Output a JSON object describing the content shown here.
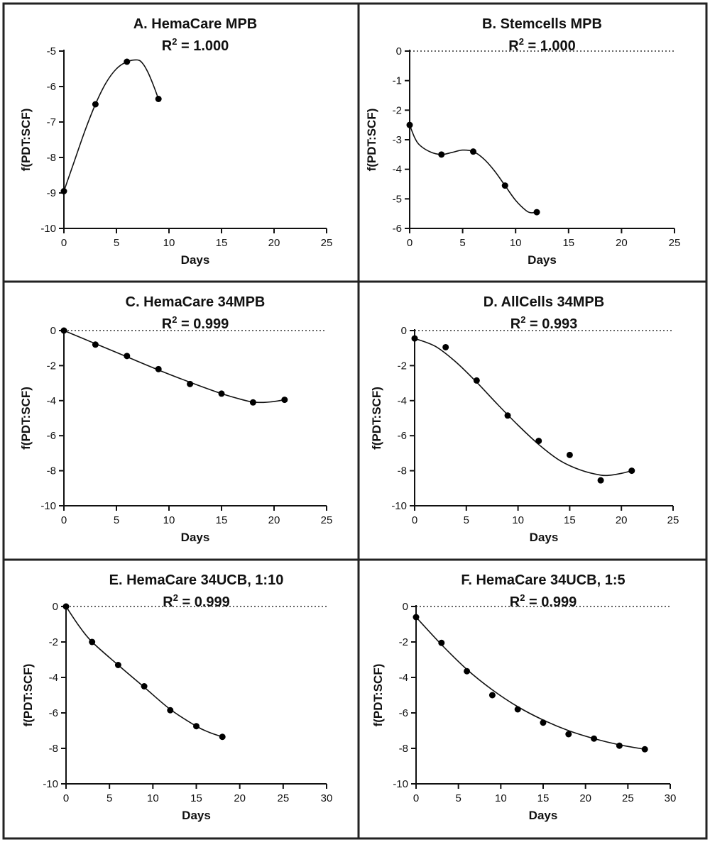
{
  "chart_data": [
    {
      "id": "A",
      "type": "scatter",
      "title": "A. HemaCare MPB",
      "r2_value": "1.000",
      "xlabel": "Days",
      "ylabel": "f(PDT:SCF)",
      "xlim": [
        0,
        25
      ],
      "ylim": [
        -10,
        -5
      ],
      "xticks": [
        0,
        5,
        10,
        15,
        20,
        25
      ],
      "yticks": [
        -10,
        -9,
        -8,
        -7,
        -6,
        -5
      ],
      "zero_line": false,
      "points": [
        [
          0,
          -8.95
        ],
        [
          3,
          -6.5
        ],
        [
          6,
          -5.3
        ],
        [
          9,
          -6.35
        ]
      ],
      "fit": [
        [
          0,
          -8.95
        ],
        [
          1,
          -8.1
        ],
        [
          2,
          -7.25
        ],
        [
          3,
          -6.5
        ],
        [
          4,
          -5.9
        ],
        [
          5,
          -5.5
        ],
        [
          6,
          -5.3
        ],
        [
          7,
          -5.25
        ],
        [
          7.5,
          -5.35
        ],
        [
          8,
          -5.6
        ],
        [
          8.5,
          -5.95
        ],
        [
          9,
          -6.35
        ]
      ]
    },
    {
      "id": "B",
      "type": "scatter",
      "title": "B. Stemcells MPB",
      "r2_value": "1.000",
      "xlabel": "Days",
      "ylabel": "f(PDT:SCF)",
      "xlim": [
        0,
        25
      ],
      "ylim": [
        -6,
        0
      ],
      "xticks": [
        0,
        5,
        10,
        15,
        20,
        25
      ],
      "yticks": [
        -6,
        -5,
        -4,
        -3,
        -2,
        -1,
        0
      ],
      "zero_line": true,
      "points": [
        [
          0,
          -2.5
        ],
        [
          3,
          -3.5
        ],
        [
          6,
          -3.4
        ],
        [
          9,
          -4.55
        ],
        [
          12,
          -5.45
        ]
      ],
      "fit": [
        [
          0,
          -2.5
        ],
        [
          0.5,
          -2.95
        ],
        [
          1,
          -3.2
        ],
        [
          2,
          -3.42
        ],
        [
          3,
          -3.5
        ],
        [
          4,
          -3.43
        ],
        [
          5,
          -3.35
        ],
        [
          6,
          -3.4
        ],
        [
          7,
          -3.65
        ],
        [
          8,
          -4.05
        ],
        [
          9,
          -4.55
        ],
        [
          10,
          -5.05
        ],
        [
          11,
          -5.4
        ],
        [
          11.5,
          -5.47
        ],
        [
          12,
          -5.45
        ]
      ]
    },
    {
      "id": "C",
      "type": "scatter",
      "title": "C. HemaCare 34MPB",
      "r2_value": "0.999",
      "xlabel": "Days",
      "ylabel": "f(PDT:SCF)",
      "xlim": [
        0,
        25
      ],
      "ylim": [
        -10,
        0
      ],
      "xticks": [
        0,
        5,
        10,
        15,
        20,
        25
      ],
      "yticks": [
        -10,
        -8,
        -6,
        -4,
        -2,
        0
      ],
      "zero_line": true,
      "points": [
        [
          0,
          0
        ],
        [
          3,
          -0.8
        ],
        [
          6,
          -1.45
        ],
        [
          9,
          -2.2
        ],
        [
          12,
          -3.05
        ],
        [
          15,
          -3.6
        ],
        [
          18,
          -4.1
        ],
        [
          21,
          -3.95
        ]
      ],
      "fit": [
        [
          0,
          0
        ],
        [
          3,
          -0.75
        ],
        [
          6,
          -1.5
        ],
        [
          9,
          -2.25
        ],
        [
          12,
          -2.95
        ],
        [
          15,
          -3.6
        ],
        [
          17,
          -3.95
        ],
        [
          18,
          -4.08
        ],
        [
          19,
          -4.1
        ],
        [
          20,
          -4.05
        ],
        [
          21,
          -3.95
        ]
      ]
    },
    {
      "id": "D",
      "type": "scatter",
      "title": "D. AllCells 34MPB",
      "r2_value": "0.993",
      "xlabel": "Days",
      "ylabel": "f(PDT:SCF)",
      "xlim": [
        0,
        25
      ],
      "ylim": [
        -10,
        0
      ],
      "xticks": [
        0,
        5,
        10,
        15,
        20,
        25
      ],
      "yticks": [
        -10,
        -8,
        -6,
        -4,
        -2,
        0
      ],
      "zero_line": true,
      "points": [
        [
          0,
          -0.45
        ],
        [
          3,
          -0.95
        ],
        [
          6,
          -2.85
        ],
        [
          9,
          -4.85
        ],
        [
          12,
          -6.3
        ],
        [
          15,
          -7.1
        ],
        [
          18,
          -8.55
        ],
        [
          21,
          -8.0
        ]
      ],
      "fit": [
        [
          0,
          -0.45
        ],
        [
          2,
          -0.9
        ],
        [
          4,
          -1.8
        ],
        [
          6,
          -2.95
        ],
        [
          8,
          -4.2
        ],
        [
          10,
          -5.4
        ],
        [
          12,
          -6.5
        ],
        [
          14,
          -7.4
        ],
        [
          16,
          -7.95
        ],
        [
          18,
          -8.25
        ],
        [
          19,
          -8.25
        ],
        [
          20,
          -8.15
        ],
        [
          21,
          -8.0
        ]
      ]
    },
    {
      "id": "E",
      "type": "scatter",
      "title": "E. HemaCare 34UCB, 1:10",
      "r2_value": "0.999",
      "xlabel": "Days",
      "ylabel": "f(PDT:SCF)",
      "xlim": [
        0,
        30
      ],
      "ylim": [
        -10,
        0
      ],
      "xticks": [
        0,
        5,
        10,
        15,
        20,
        25,
        30
      ],
      "yticks": [
        -10,
        -8,
        -6,
        -4,
        -2,
        0
      ],
      "zero_line": true,
      "points": [
        [
          0,
          0
        ],
        [
          3,
          -2.0
        ],
        [
          6,
          -3.3
        ],
        [
          9,
          -4.5
        ],
        [
          12,
          -5.85
        ],
        [
          15,
          -6.75
        ],
        [
          18,
          -7.35
        ]
      ],
      "fit": [
        [
          0,
          0
        ],
        [
          1.5,
          -1.1
        ],
        [
          3,
          -2.0
        ],
        [
          6,
          -3.3
        ],
        [
          9,
          -4.55
        ],
        [
          12,
          -5.8
        ],
        [
          15,
          -6.75
        ],
        [
          16.5,
          -7.1
        ],
        [
          18,
          -7.35
        ]
      ]
    },
    {
      "id": "F",
      "type": "scatter",
      "title": "F. HemaCare 34UCB, 1:5",
      "r2_value": "0.999",
      "xlabel": "Days",
      "ylabel": "f(PDT:SCF)",
      "xlim": [
        0,
        30
      ],
      "ylim": [
        -10,
        0
      ],
      "xticks": [
        0,
        5,
        10,
        15,
        20,
        25,
        30
      ],
      "yticks": [
        -10,
        -8,
        -6,
        -4,
        -2,
        0
      ],
      "zero_line": true,
      "points": [
        [
          0,
          -0.6
        ],
        [
          3,
          -2.05
        ],
        [
          6,
          -3.65
        ],
        [
          9,
          -5.0
        ],
        [
          12,
          -5.8
        ],
        [
          15,
          -6.55
        ],
        [
          18,
          -7.2
        ],
        [
          21,
          -7.45
        ],
        [
          24,
          -7.85
        ],
        [
          27,
          -8.05
        ]
      ],
      "fit": [
        [
          0,
          -0.6
        ],
        [
          3,
          -2.15
        ],
        [
          6,
          -3.55
        ],
        [
          9,
          -4.7
        ],
        [
          12,
          -5.65
        ],
        [
          15,
          -6.4
        ],
        [
          18,
          -7.0
        ],
        [
          21,
          -7.45
        ],
        [
          24,
          -7.8
        ],
        [
          27,
          -8.05
        ]
      ]
    }
  ]
}
